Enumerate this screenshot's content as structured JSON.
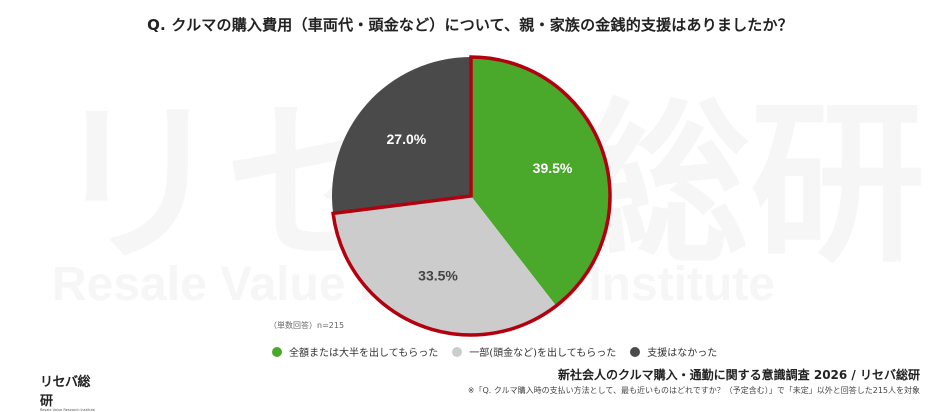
{
  "title": "Q. クルマの購入費用（車両代・頭金など）について、親・家族の金銭的支援はありましたか？",
  "watermark": {
    "main": "リセバ総研",
    "sub": "Resale Value Research Institute"
  },
  "chart_data": {
    "type": "pie",
    "title": "Q. クルマの購入費用（車両代・頭金など）について、親・家族の金銭的支援はありましたか？",
    "categories": [
      "全額または大半を出してもらった",
      "一部（頭金など）を出してもらった",
      "支援はなかった"
    ],
    "values": [
      39.5,
      33.5,
      27.0
    ],
    "labels": [
      "39.5%",
      "33.5%",
      "27.0%"
    ],
    "colors": [
      "#4aa82b",
      "#cccccc",
      "#4a4a4a"
    ],
    "label_colors": [
      "#ffffff",
      "#444444",
      "#ffffff"
    ],
    "start_angle_deg": 0,
    "direction": "clockwise",
    "highlight_outline": {
      "segments": [
        0,
        1
      ],
      "color": "#b3000f"
    },
    "legend_position": "bottom",
    "note": "（単数回答）n=215"
  },
  "note": "（単数回答）n=215",
  "legend": [
    {
      "label": "全額または大半を出してもらった",
      "color": "#4aa82b"
    },
    {
      "label": "一部(頭金など)を出してもらった",
      "color": "#cccccc"
    },
    {
      "label": "支援はなかった",
      "color": "#4a4a4a"
    }
  ],
  "logo": {
    "main": "リセバ総研",
    "sub": "Resale Value Research Institute"
  },
  "source": "新社会人のクルマ購入・通勤に関する意識調査 2026 / リセバ総研",
  "footnote": "※「Q. クルマ購入時の支払い方法として、最も近いものはどれですか？（予定含む）」で「未定」以外と回答した215人を対象"
}
